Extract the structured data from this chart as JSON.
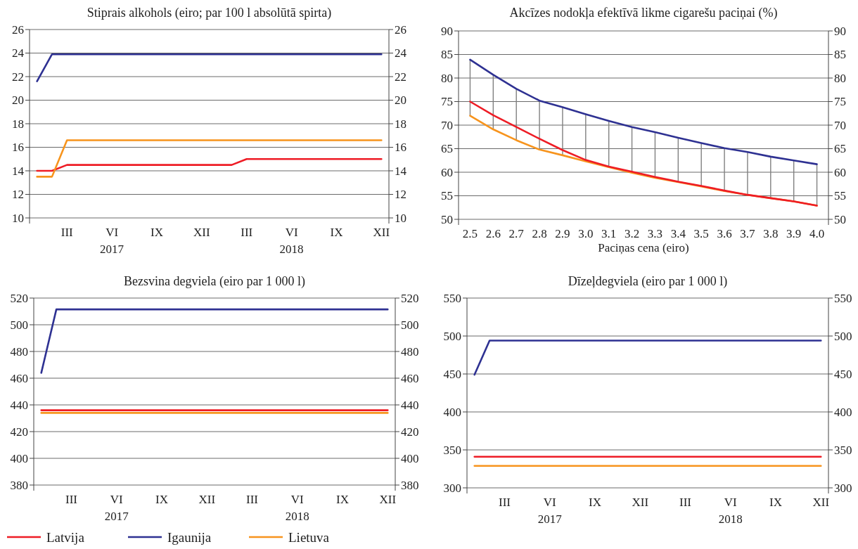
{
  "chart_data": [
    {
      "type": "line",
      "title": "Stiprais alkohols (eiro; par 100 l absolūtā spirta)",
      "categories": [
        null,
        null,
        "III",
        null,
        null,
        "VI\n2017",
        null,
        null,
        "IX",
        null,
        null,
        "XII",
        null,
        null,
        "III",
        null,
        null,
        "VI\n2018",
        null,
        null,
        "IX",
        null,
        null,
        "XII"
      ],
      "ylim": [
        10,
        26
      ],
      "yticks": [
        10,
        12,
        14,
        16,
        18,
        20,
        22,
        24,
        26
      ],
      "y2lim": [
        10,
        26
      ],
      "y2ticks": [
        10,
        12,
        14,
        16,
        18,
        20,
        22,
        24,
        26
      ],
      "grid": "y",
      "series": [
        {
          "color": "#ee1c25",
          "values": [
            14,
            14,
            14.5,
            14.5,
            14.5,
            14.5,
            14.5,
            14.5,
            14.5,
            14.5,
            14.5,
            14.5,
            14.5,
            14.5,
            15,
            15,
            15,
            15,
            15,
            15,
            15,
            15,
            15,
            15
          ]
        },
        {
          "color": "#2e3192",
          "values": [
            21.6,
            23.9,
            23.9,
            23.9,
            23.9,
            23.9,
            23.9,
            23.9,
            23.9,
            23.9,
            23.9,
            23.9,
            23.9,
            23.9,
            23.9,
            23.9,
            23.9,
            23.9,
            23.9,
            23.9,
            23.9,
            23.9,
            23.9,
            23.9
          ]
        },
        {
          "color": "#f7941d",
          "values": [
            13.5,
            13.5,
            16.6,
            16.6,
            16.6,
            16.6,
            16.6,
            16.6,
            16.6,
            16.6,
            16.6,
            16.6,
            16.6,
            16.6,
            16.6,
            16.6,
            16.6,
            16.6,
            16.6,
            16.6,
            16.6,
            16.6,
            16.6,
            16.6
          ]
        }
      ]
    },
    {
      "type": "line",
      "title": "Akcīzes nodokļa efektīvā likme cigarešu paciņai (%)",
      "xlabel": "Paciņas cena (eiro)",
      "categories": [
        "2.5",
        "2.6",
        "2.7",
        "2.8",
        "2.9",
        "3.0",
        "3.1",
        "3.2",
        "3.3",
        "3.4",
        "3.5",
        "3.6",
        "3.7",
        "3.8",
        "3.9",
        "4.0"
      ],
      "ylim": [
        50,
        90
      ],
      "yticks": [
        50,
        55,
        60,
        65,
        70,
        75,
        80,
        85,
        90
      ],
      "y2lim": [
        50,
        90
      ],
      "y2ticks": [
        50,
        55,
        60,
        65,
        70,
        75,
        80,
        85,
        90
      ],
      "grid": "y",
      "series": [
        {
          "type": "bar",
          "color": "#808080",
          "base": [
            72.0,
            69.1,
            66.8,
            64.8,
            63.6,
            62.3,
            61.1,
            59.9,
            58.8,
            57.9,
            57.0,
            56.0,
            55.2,
            54.5,
            53.8,
            52.9
          ],
          "values": [
            11.9,
            11.6,
            10.9,
            10.4,
            10.2,
            10.0,
            9.8,
            9.7,
            9.7,
            9.4,
            9.2,
            9.1,
            9.1,
            8.8,
            8.7,
            8.8
          ]
        },
        {
          "color": "#2e3192",
          "values": [
            83.9,
            80.7,
            77.7,
            75.2,
            73.8,
            72.3,
            70.9,
            69.6,
            68.5,
            67.3,
            66.2,
            65.1,
            64.3,
            63.3,
            62.5,
            61.7
          ]
        },
        {
          "color": "#f7941d",
          "values": [
            72.0,
            69.1,
            66.8,
            64.8,
            63.6,
            62.3,
            61.1,
            59.9,
            58.8,
            57.9,
            57.0,
            56.0,
            55.2,
            54.5,
            53.8,
            52.9
          ]
        },
        {
          "color": "#ee1c25",
          "values": [
            75.0,
            72.1,
            69.6,
            67.1,
            64.7,
            62.6,
            61.2,
            60.1,
            59.0,
            58.0,
            57.1,
            56.1,
            55.2,
            54.5,
            53.8,
            52.9
          ]
        }
      ]
    },
    {
      "type": "line",
      "title": "Bezsvina degviela (eiro par 1 000 l)",
      "categories": [
        null,
        null,
        "III",
        null,
        null,
        "VI\n2017",
        null,
        null,
        "IX",
        null,
        null,
        "XII",
        null,
        null,
        "III",
        null,
        null,
        "VI\n2018",
        null,
        null,
        "IX",
        null,
        null,
        "XII"
      ],
      "ylim": [
        380,
        520
      ],
      "yticks": [
        380,
        400,
        420,
        440,
        460,
        480,
        500,
        520
      ],
      "y2lim": [
        380,
        520
      ],
      "y2ticks": [
        380,
        400,
        420,
        440,
        460,
        480,
        500,
        520
      ],
      "grid": "y",
      "legend": "bottom",
      "series": [
        {
          "name": "Latvija",
          "color": "#ee1c25",
          "values": [
            436,
            436,
            436,
            436,
            436,
            436,
            436,
            436,
            436,
            436,
            436,
            436,
            436,
            436,
            436,
            436,
            436,
            436,
            436,
            436,
            436,
            436,
            436,
            436
          ]
        },
        {
          "name": "Igaunija",
          "color": "#2e3192",
          "values": [
            464,
            511.5,
            511.5,
            511.5,
            511.5,
            511.5,
            511.5,
            511.5,
            511.5,
            511.5,
            511.5,
            511.5,
            511.5,
            511.5,
            511.5,
            511.5,
            511.5,
            511.5,
            511.5,
            511.5,
            511.5,
            511.5,
            511.5,
            511.5
          ]
        },
        {
          "name": "Lietuva",
          "color": "#f7941d",
          "values": [
            434,
            434,
            434,
            434,
            434,
            434,
            434,
            434,
            434,
            434,
            434,
            434,
            434,
            434,
            434,
            434,
            434,
            434,
            434,
            434,
            434,
            434,
            434,
            434
          ]
        }
      ]
    },
    {
      "type": "line",
      "title": "Dīzeļdegviela (eiro par 1 000 l)",
      "categories": [
        null,
        null,
        "III",
        null,
        null,
        "VI\n2017",
        null,
        null,
        "IX",
        null,
        null,
        "XII",
        null,
        null,
        "III",
        null,
        null,
        "VI\n2018",
        null,
        null,
        "IX",
        null,
        null,
        "XII"
      ],
      "ylim": [
        300,
        550
      ],
      "yticks": [
        300,
        350,
        400,
        450,
        500,
        550
      ],
      "y2lim": [
        300,
        550
      ],
      "y2ticks": [
        300,
        350,
        400,
        450,
        500,
        550
      ],
      "grid": "y",
      "series": [
        {
          "color": "#ee1c25",
          "values": [
            341,
            341,
            341,
            341,
            341,
            341,
            341,
            341,
            341,
            341,
            341,
            341,
            341,
            341,
            341,
            341,
            341,
            341,
            341,
            341,
            341,
            341,
            341,
            341
          ]
        },
        {
          "color": "#2e3192",
          "values": [
            449,
            494,
            494,
            494,
            494,
            494,
            494,
            494,
            494,
            494,
            494,
            494,
            494,
            494,
            494,
            494,
            494,
            494,
            494,
            494,
            494,
            494,
            494,
            494
          ]
        },
        {
          "color": "#f7941d",
          "values": [
            329,
            329,
            329,
            329,
            329,
            329,
            329,
            329,
            329,
            329,
            329,
            329,
            329,
            329,
            329,
            329,
            329,
            329,
            329,
            329,
            329,
            329,
            329,
            329
          ]
        }
      ]
    }
  ]
}
